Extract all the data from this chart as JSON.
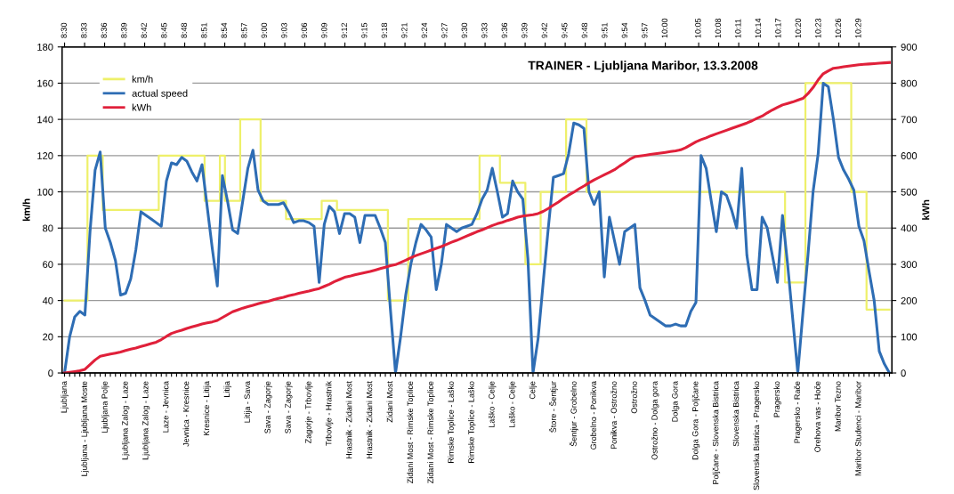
{
  "chart_data": {
    "type": "line",
    "title": "TRAINER - Ljubljana Maribor, 13.3.2008",
    "ylabel": "km/h",
    "y2label": "kWh",
    "categories": [
      "Ljubljana",
      null,
      null,
      null,
      "Ljubljana - Ljubljana Moste",
      null,
      null,
      null,
      "Ljubljana Polje",
      null,
      null,
      null,
      "Ljubljana Zalog - Laze",
      null,
      null,
      null,
      "Ljubljana Zalog - Laze",
      null,
      null,
      null,
      "Laze - Jevnica",
      null,
      null,
      null,
      "Jevnica - Kresnice",
      null,
      null,
      null,
      "Kresnice - Litija",
      null,
      null,
      null,
      "Litija",
      null,
      null,
      null,
      "Litija - Sava",
      null,
      null,
      null,
      "Sava - Zagorje",
      null,
      null,
      null,
      "Sava - Zagorje",
      null,
      null,
      null,
      "Zagorje - Trbovlje",
      null,
      null,
      null,
      "Trbovlje - Hrastnik",
      null,
      null,
      null,
      "Hrastnik - Zidani Most",
      null,
      null,
      null,
      "Hrastnik - Zidani Most",
      null,
      null,
      null,
      "Zidani Most",
      null,
      null,
      null,
      "Zidani Most - Rimske Toplice",
      null,
      null,
      null,
      "Zidani Most - Rimske Toplice",
      null,
      null,
      null,
      "Rimske Toplice - Laško",
      null,
      null,
      null,
      "Rimske Toplice - Laško",
      null,
      null,
      null,
      "Laško - Celje",
      null,
      null,
      null,
      "Laško - Celje",
      null,
      null,
      null,
      "Celje",
      null,
      null,
      null,
      "Štore - Šentjur",
      null,
      null,
      null,
      "Šentjur - Grobelno",
      null,
      null,
      null,
      "Grobelno - Ponikva",
      null,
      null,
      null,
      "Ponikva - Ostrožno",
      null,
      null,
      null,
      "Ostrožno",
      null,
      null,
      null,
      "Ostrožno - Dolga gora",
      null,
      null,
      null,
      "Dolga Gora",
      null,
      null,
      null,
      "Dolga Gora - Poljčane",
      null,
      null,
      null,
      "Poljčane - Slovenska Bistrica",
      null,
      null,
      null,
      "Slovenska Bistrica",
      null,
      null,
      null,
      "Slovenska Bistrica - Pragersko",
      null,
      null,
      null,
      "Pragersko",
      null,
      null,
      null,
      "Pragersko - Rače",
      null,
      null,
      null,
      "Orehova vas - Hoče",
      null,
      null,
      null,
      "Maribor Tezno",
      null,
      null,
      null,
      "Maribor Studenci - Maribor",
      null,
      null,
      null,
      null,
      null,
      null
    ],
    "x2lim": [
      8.4936,
      10.566
    ],
    "x2ticks": [
      {
        "value": 8.5,
        "label": "8:30"
      },
      {
        "value": 8.55,
        "label": "8:33"
      },
      {
        "value": 8.6,
        "label": "8:36"
      },
      {
        "value": 8.65,
        "label": "8:39"
      },
      {
        "value": 8.7,
        "label": "8:42"
      },
      {
        "value": 8.75,
        "label": "8:45"
      },
      {
        "value": 8.8,
        "label": "8:48"
      },
      {
        "value": 8.85,
        "label": "8:51"
      },
      {
        "value": 8.9,
        "label": "8:54"
      },
      {
        "value": 8.95,
        "label": "8:57"
      },
      {
        "value": 9.0,
        "label": "9:00"
      },
      {
        "value": 9.05,
        "label": "9:03"
      },
      {
        "value": 9.1,
        "label": "9:06"
      },
      {
        "value": 9.15,
        "label": "9:09"
      },
      {
        "value": 9.2,
        "label": "9:12"
      },
      {
        "value": 9.25,
        "label": "9:15"
      },
      {
        "value": 9.3,
        "label": "9:18"
      },
      {
        "value": 9.35,
        "label": "9:21"
      },
      {
        "value": 9.4,
        "label": "9:24"
      },
      {
        "value": 9.45,
        "label": "9:27"
      },
      {
        "value": 9.5,
        "label": "9:30"
      },
      {
        "value": 9.55,
        "label": "9:33"
      },
      {
        "value": 9.6,
        "label": "9:36"
      },
      {
        "value": 9.65,
        "label": "9:39"
      },
      {
        "value": 9.7,
        "label": "9:42"
      },
      {
        "value": 9.75,
        "label": "9:45"
      },
      {
        "value": 9.8,
        "label": "9:48"
      },
      {
        "value": 9.85,
        "label": "9:51"
      },
      {
        "value": 9.9,
        "label": "9:54"
      },
      {
        "value": 9.95,
        "label": "9:57"
      },
      {
        "value": 10.0,
        "label": "10:00"
      },
      {
        "value": 10.0833,
        "label": "10:05"
      },
      {
        "value": 10.1333,
        "label": "10:08"
      },
      {
        "value": 10.1833,
        "label": "10:11"
      },
      {
        "value": 10.2333,
        "label": "10:14"
      },
      {
        "value": 10.2833,
        "label": "10:17"
      },
      {
        "value": 10.3333,
        "label": "10:20"
      },
      {
        "value": 10.3833,
        "label": "10:23"
      },
      {
        "value": 10.4333,
        "label": "10:26"
      },
      {
        "value": 10.4833,
        "label": "10:29"
      }
    ],
    "ylim": [
      0,
      180
    ],
    "yticks": [
      0,
      20,
      40,
      60,
      80,
      100,
      120,
      140,
      160,
      180
    ],
    "y2lim": [
      0,
      900
    ],
    "y2ticks": [
      0,
      100,
      200,
      300,
      400,
      500,
      600,
      700,
      800,
      900
    ],
    "grid": "y",
    "legend": "top left",
    "marker": "none",
    "line_style": "solid",
    "series": [
      {
        "name": "km/h",
        "type": "step",
        "color": "#eef06a",
        "values": [
          40,
          40,
          40,
          40,
          40,
          120,
          120,
          120,
          90,
          90,
          90,
          90,
          90,
          90,
          90,
          90,
          90,
          90,
          90,
          120,
          120,
          120,
          120,
          120,
          120,
          120,
          120,
          120,
          95,
          95,
          95,
          120,
          95,
          95,
          95,
          140,
          140,
          140,
          140,
          95,
          95,
          95,
          95,
          95,
          85,
          85,
          85,
          85,
          85,
          85,
          85,
          95,
          95,
          95,
          90,
          90,
          90,
          90,
          90,
          90,
          90,
          90,
          90,
          90,
          40,
          40,
          40,
          40,
          85,
          85,
          85,
          85,
          85,
          85,
          85,
          85,
          85,
          85,
          85,
          85,
          85,
          85,
          120,
          120,
          120,
          120,
          105,
          105,
          105,
          105,
          105,
          60,
          60,
          60,
          100,
          100,
          100,
          100,
          100,
          140,
          140,
          140,
          140,
          100,
          100,
          100,
          100,
          100,
          100,
          100,
          100,
          100,
          100,
          100,
          100,
          100,
          100,
          100,
          100,
          100,
          100,
          100,
          100,
          100,
          100,
          100,
          100,
          100,
          100,
          100,
          100,
          100,
          100,
          100,
          100,
          100,
          100,
          100,
          100,
          100,
          100,
          100,
          50,
          50,
          50,
          50,
          160,
          160,
          160,
          160,
          160,
          160,
          160,
          160,
          160,
          100,
          100,
          100,
          35,
          35,
          35,
          35,
          35
        ]
      },
      {
        "name": "actual speed",
        "color": "#2e6db4",
        "values": [
          0,
          20,
          31,
          34,
          32,
          78,
          112,
          122,
          80,
          72,
          62,
          43,
          44,
          52,
          68,
          89,
          87,
          85,
          83,
          81,
          106,
          116,
          115,
          119,
          117,
          111,
          106,
          115,
          92,
          69,
          48,
          109,
          95,
          79,
          77,
          95,
          113,
          123,
          101,
          95,
          93,
          93,
          93,
          94,
          89,
          83,
          84,
          84,
          83,
          81,
          50,
          82,
          92,
          89,
          77,
          88,
          88,
          86,
          72,
          87,
          87,
          87,
          80,
          72,
          35,
          0,
          20,
          43,
          60,
          72,
          82,
          79,
          75,
          46,
          60,
          82,
          80,
          78,
          80,
          81,
          82,
          88,
          96,
          101,
          113,
          100,
          86,
          88,
          106,
          100,
          96,
          63,
          0,
          19,
          50,
          80,
          108,
          109,
          110,
          121,
          138,
          137,
          135,
          100,
          93,
          100,
          53,
          86,
          73,
          60,
          78,
          80,
          82,
          47,
          40,
          32,
          30,
          28,
          26,
          26,
          27,
          26,
          26,
          34,
          39,
          120,
          113,
          95,
          78,
          100,
          98,
          90,
          80,
          113,
          65,
          46,
          46,
          86,
          80,
          65,
          50,
          87,
          60,
          30,
          0,
          33,
          65,
          100,
          121,
          160,
          158,
          140,
          119,
          112,
          107,
          101,
          81,
          73,
          56,
          40,
          12,
          5,
          0
        ]
      },
      {
        "name": "kWh",
        "axis": "y2",
        "color": "#e0203a",
        "values": [
          0,
          2,
          4,
          6,
          10,
          23,
          36,
          46,
          49,
          52,
          55,
          58,
          62,
          66,
          69,
          73,
          77,
          81,
          85,
          92,
          101,
          109,
          114,
          118,
          123,
          127,
          131,
          135,
          138,
          141,
          145,
          153,
          161,
          169,
          174,
          179,
          183,
          187,
          191,
          195,
          198,
          202,
          206,
          209,
          213,
          216,
          220,
          223,
          226,
          230,
          233,
          239,
          245,
          252,
          258,
          264,
          267,
          271,
          274,
          277,
          280,
          284,
          288,
          292,
          296,
          299,
          305,
          311,
          318,
          324,
          329,
          334,
          339,
          344,
          349,
          355,
          361,
          366,
          372,
          378,
          384,
          390,
          395,
          401,
          407,
          412,
          416,
          421,
          425,
          430,
          433,
          435,
          437,
          440,
          446,
          454,
          463,
          472,
          482,
          491,
          499,
          508,
          516,
          525,
          533,
          540,
          547,
          554,
          561,
          571,
          580,
          590,
          597,
          599,
          601,
          603,
          605,
          607,
          609,
          611,
          613,
          616,
          622,
          630,
          638,
          644,
          649,
          655,
          660,
          665,
          670,
          675,
          680,
          685,
          690,
          696,
          703,
          709,
          718,
          726,
          733,
          740,
          744,
          748,
          753,
          758,
          771,
          788,
          809,
          826,
          834,
          841,
          843,
          845,
          847,
          849,
          851,
          852,
          853,
          854,
          855,
          856,
          857
        ]
      }
    ]
  }
}
